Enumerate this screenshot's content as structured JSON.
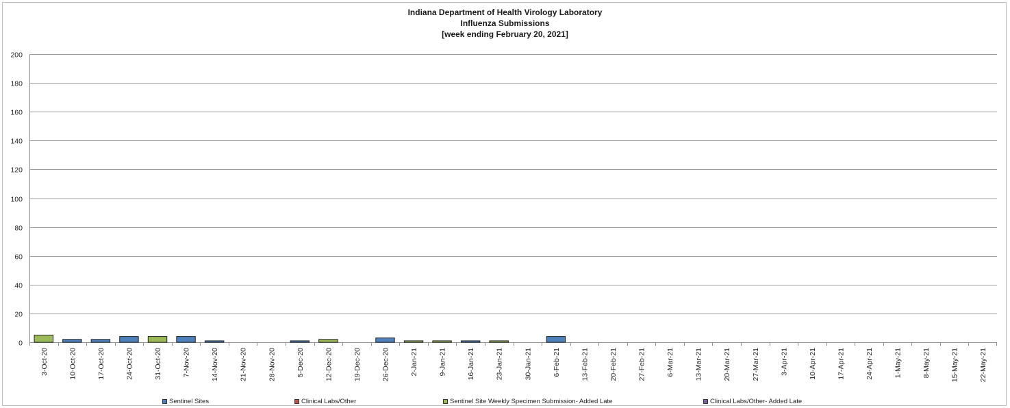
{
  "chart_data": {
    "type": "bar",
    "title": [
      "Indiana Department of Health Virology Laboratory",
      "Influenza Submissions",
      "[week ending February 20, 2021]"
    ],
    "xlabel": "",
    "ylabel": "",
    "ylim": [
      0,
      200
    ],
    "yticks": [
      0,
      20,
      40,
      60,
      80,
      100,
      120,
      140,
      160,
      180,
      200
    ],
    "grid": true,
    "legend_position": "bottom",
    "categories": [
      "3-Oct-20",
      "10-Oct-20",
      "17-Oct-20",
      "24-Oct-20",
      "31-Oct-20",
      "7-Nov-20",
      "14-Nov-20",
      "21-Nov-20",
      "28-Nov-20",
      "5-Dec-20",
      "12-Dec-20",
      "19-Dec-20",
      "26-Dec-20",
      "2-Jan-21",
      "9-Jan-21",
      "16-Jan-21",
      "23-Jan-21",
      "30-Jan-21",
      "6-Feb-21",
      "13-Feb-21",
      "20-Feb-21",
      "27-Feb-21",
      "6-Mar-21",
      "13-Mar-21",
      "20-Mar-21",
      "27-Mar-21",
      "3-Apr-21",
      "10-Apr-21",
      "17-Apr-21",
      "24-Apr-21",
      "1-May-21",
      "8-May-21",
      "15-May-21",
      "22-May-21"
    ],
    "series": [
      {
        "name": "Sentinel Sites",
        "color": "#4f81bd",
        "values": [
          0,
          2,
          2,
          4,
          0,
          4,
          1,
          0,
          0,
          1,
          0,
          0,
          3,
          0,
          0,
          1,
          0,
          0,
          4,
          0,
          0,
          0,
          0,
          0,
          0,
          0,
          0,
          0,
          0,
          0,
          0,
          0,
          0,
          0
        ]
      },
      {
        "name": "Clinical Labs/Other",
        "color": "#c0504d",
        "values": [
          0,
          0,
          0,
          0,
          0,
          0,
          0,
          0,
          0,
          0,
          0,
          0,
          0,
          0,
          0,
          0,
          0,
          0,
          0,
          0,
          0,
          0,
          0,
          0,
          0,
          0,
          0,
          0,
          0,
          0,
          0,
          0,
          0,
          0
        ]
      },
      {
        "name": "Sentinel Site Weekly Specimen Submission- Added Late",
        "color": "#9bbb59",
        "values": [
          5,
          0,
          0,
          0,
          4,
          0,
          0,
          0,
          0,
          0,
          2,
          0,
          0,
          1,
          1,
          0,
          1,
          0,
          0,
          0,
          0,
          0,
          0,
          0,
          0,
          0,
          0,
          0,
          0,
          0,
          0,
          0,
          0,
          0
        ]
      },
      {
        "name": "Clinical Labs/Other- Added Late",
        "color": "#8064a2",
        "values": [
          0,
          0,
          0,
          0,
          0,
          0,
          0,
          0,
          0,
          0,
          0,
          0,
          0,
          0,
          0,
          0,
          0,
          0,
          0,
          0,
          0,
          0,
          0,
          0,
          0,
          0,
          0,
          0,
          0,
          0,
          0,
          0,
          0,
          0
        ]
      }
    ]
  }
}
